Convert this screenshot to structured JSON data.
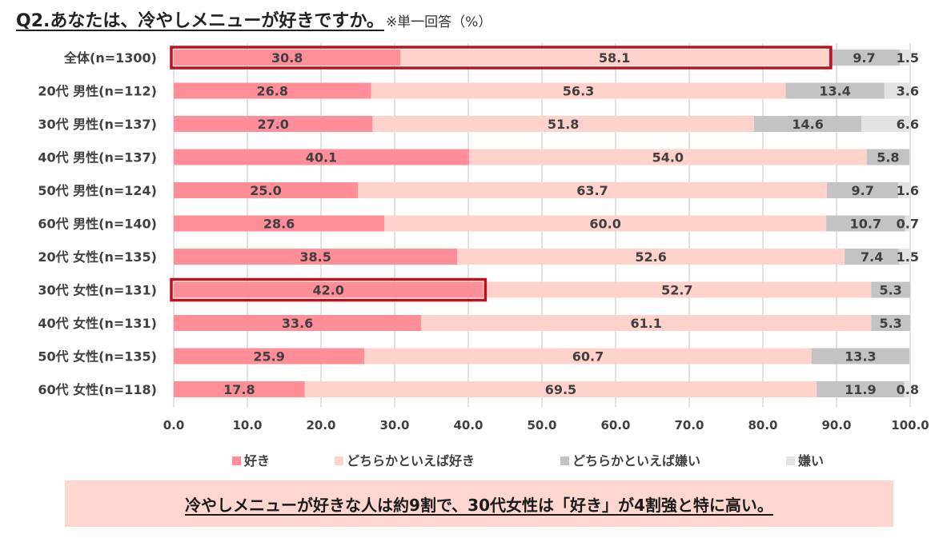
{
  "header": {
    "title": "Q2.あなたは、冷やしメニューが好きですか。",
    "note": "※単一回答（%）"
  },
  "chart_data": {
    "type": "bar",
    "orientation": "horizontal",
    "stacked": true,
    "title": "Q2.あなたは、冷やしメニューが好きですか。",
    "categories": [
      "全体(n=1300)",
      "20代 男性(n=112)",
      "30代 男性(n=137)",
      "40代 男性(n=137)",
      "50代 男性(n=124)",
      "60代 男性(n=140)",
      "20代 女性(n=135)",
      "30代 女性(n=131)",
      "40代 女性(n=131)",
      "50代 女性(n=135)",
      "60代 女性(n=118)"
    ],
    "series": [
      {
        "name": "好き",
        "color": "#ff8e98",
        "values": [
          30.8,
          26.8,
          27.0,
          40.1,
          25.0,
          28.6,
          38.5,
          42.0,
          33.6,
          25.9,
          17.8
        ]
      },
      {
        "name": "どちらかといえば好き",
        "color": "#ffd3cc",
        "values": [
          58.1,
          56.3,
          51.8,
          54.0,
          63.7,
          60.0,
          52.6,
          52.7,
          61.1,
          60.7,
          69.5
        ]
      },
      {
        "name": "どちらかといえば嫌い",
        "color": "#c3c3c3",
        "values": [
          9.7,
          13.4,
          14.6,
          5.8,
          9.7,
          10.7,
          7.4,
          5.3,
          5.3,
          13.3,
          11.9
        ]
      },
      {
        "name": "嫌い",
        "color": "#e3e3e3",
        "values": [
          1.5,
          3.6,
          6.6,
          0.0,
          1.6,
          0.7,
          1.5,
          0.0,
          0.0,
          0.0,
          0.8
        ]
      }
    ],
    "xlim": [
      0,
      100
    ],
    "xticks": [
      "0.0",
      "10.0",
      "20.0",
      "30.0",
      "40.0",
      "50.0",
      "60.0",
      "70.0",
      "80.0",
      "90.0",
      "100.0"
    ],
    "grid": true,
    "legend_position": "bottom",
    "highlights": [
      {
        "category_index": 0,
        "from": 0,
        "to": 88.9,
        "color": "#c0101e"
      },
      {
        "category_index": 7,
        "from": 0,
        "to": 42.0,
        "color": "#c0101e"
      }
    ]
  },
  "summary": {
    "text": "冷やしメニューが好きな人は約9割で、30代女性は「好き」が4割強と特に高い。"
  }
}
